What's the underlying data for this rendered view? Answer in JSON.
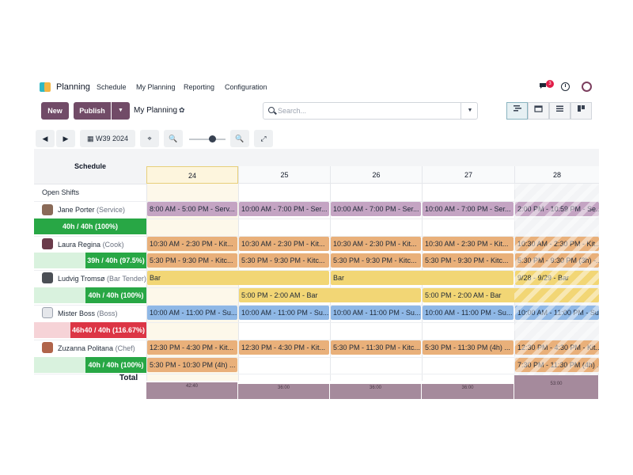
{
  "navbar": {
    "app_name": "Planning",
    "menu": [
      "Schedule",
      "My Planning",
      "Reporting",
      "Configuration"
    ],
    "chat_badge": "3"
  },
  "control": {
    "new_label": "New",
    "publish_label": "Publish",
    "view_title": "My Planning",
    "gear": "✿",
    "search_placeholder": "Search...",
    "dropdown": "▼"
  },
  "scale": {
    "week_label": "W39 2024",
    "prev": "◀",
    "next": "▶"
  },
  "gantt": {
    "header_label": "Schedule",
    "days": [
      "24",
      "25",
      "26",
      "27",
      "28"
    ],
    "open_shifts_label": "Open Shifts",
    "resources": [
      {
        "name": "Jane Porter",
        "role": "(Service)",
        "progress": "40h / 40h (100%)",
        "ratio": 1.0
      },
      {
        "name": "Laura Regina",
        "role": "(Cook)",
        "progress": "39h / 40h (97.5%)",
        "ratio": 0.975
      },
      {
        "name": "Ludvig Tromsø",
        "role": "(Bar Tender)",
        "progress": "40h / 40h (100%)",
        "ratio": 1.0
      },
      {
        "name": "Mister Boss",
        "role": "(Boss)",
        "progress": "46h40 / 40h (116.67%)",
        "ratio": 1.1667
      },
      {
        "name": "Zuzanna Politana",
        "role": "(Chef)",
        "progress": "40h / 40h (100%)",
        "ratio": 1.0
      }
    ],
    "shifts": {
      "jane": [
        "8:00 AM - 5:00 PM - Serv...",
        "10:00 AM - 7:00 PM - Ser...",
        "10:00 AM - 7:00 PM - Ser...",
        "10:00 AM - 7:00 PM - Ser...",
        "2:00 PM - 10:59 PM - Se..."
      ],
      "laura_1": [
        "10:30 AM - 2:30 PM - Kit...",
        "10:30 AM - 2:30 PM - Kit...",
        "10:30 AM - 2:30 PM - Kit...",
        "10:30 AM - 2:30 PM - Kit...",
        "10:30 AM - 2:30 PM - Kit..."
      ],
      "laura_2": [
        "5:30 PM - 9:30 PM - Kitc...",
        "5:30 PM - 9:30 PM - Kitc...",
        "5:30 PM - 9:30 PM - Kitc...",
        "5:30 PM - 9:30 PM - Kitc...",
        "5:30 PM - 9:30 PM (3h) -..."
      ],
      "ludvig_1": [
        "Bar",
        "Bar",
        "9/28 - 9/29 - Bar"
      ],
      "ludvig_2": [
        "5:00 PM - 2:00 AM - Bar",
        "5:00 PM - 2:00 AM - Bar"
      ],
      "boss": [
        "10:00 AM - 11:00 PM - Su...",
        "10:00 AM - 11:00 PM - Su...",
        "10:00 AM - 11:00 PM - Su...",
        "10:00 AM - 11:00 PM - Su...",
        "10:00 AM - 11:00 PM - Su..."
      ],
      "zuzanna_1": [
        "12:30 PM - 4:30 PM - Kit...",
        "12:30 PM - 4:30 PM - Kit...",
        "5:30 PM - 11:30 PM - Kitc...",
        "5:30 PM - 11:30 PM (4h) ...",
        "12:30 PM - 4:30 PM - Kit..."
      ],
      "zuzanna_2": [
        "5:30 PM - 10:30 PM (4h) ...",
        "7:30 PM - 11:30 PM (4h) ..."
      ]
    },
    "total_label": "Total",
    "totals": [
      "42:40",
      "36:00",
      "36:00",
      "36:00",
      "53:00"
    ]
  },
  "colors": {
    "brand": "#714b67",
    "progress_ok": "#28a745",
    "progress_over": "#dc3545",
    "service": "#c4a4c3",
    "kitchen": "#e9b07a",
    "bar": "#f2d675",
    "sushi": "#8fb8e6"
  }
}
